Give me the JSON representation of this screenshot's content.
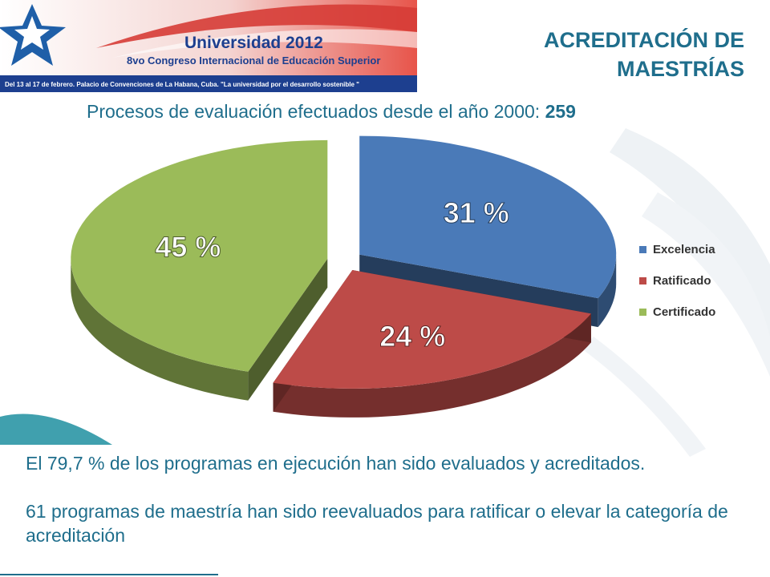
{
  "banner": {
    "logo_title": "Universidad 2012",
    "logo_subtitle": "8vo Congreso Internacional de Educación Superior",
    "strip_text": "Del 13 al 17 de febrero. Palacio de Convenciones de La Habana, Cuba. \"La universidad por el desarrollo sostenible \""
  },
  "slide": {
    "title_line1": "ACREDITACIÓN DE",
    "title_line2": "MAESTRÍAS",
    "subtitle_prefix": "Procesos de evaluación efectuados desde el año 2000:",
    "subtitle_count": "259"
  },
  "chart_data": {
    "type": "pie",
    "categories": [
      "Excelencia",
      "Ratificado",
      "Certificado"
    ],
    "values": [
      31,
      24,
      45
    ],
    "labels": [
      "31 %",
      "24 %",
      "45 %"
    ],
    "colors": [
      "#4a7ab8",
      "#bd4b48",
      "#9bbb59"
    ],
    "legend": "right",
    "style": "3d-exploded"
  },
  "body": {
    "line1": "El 79,7 % de los programas en ejecución han sido evaluados y acreditados.",
    "line2": "61 programas de maestría han sido reevaluados para ratificar o elevar la categoría de acreditación"
  }
}
